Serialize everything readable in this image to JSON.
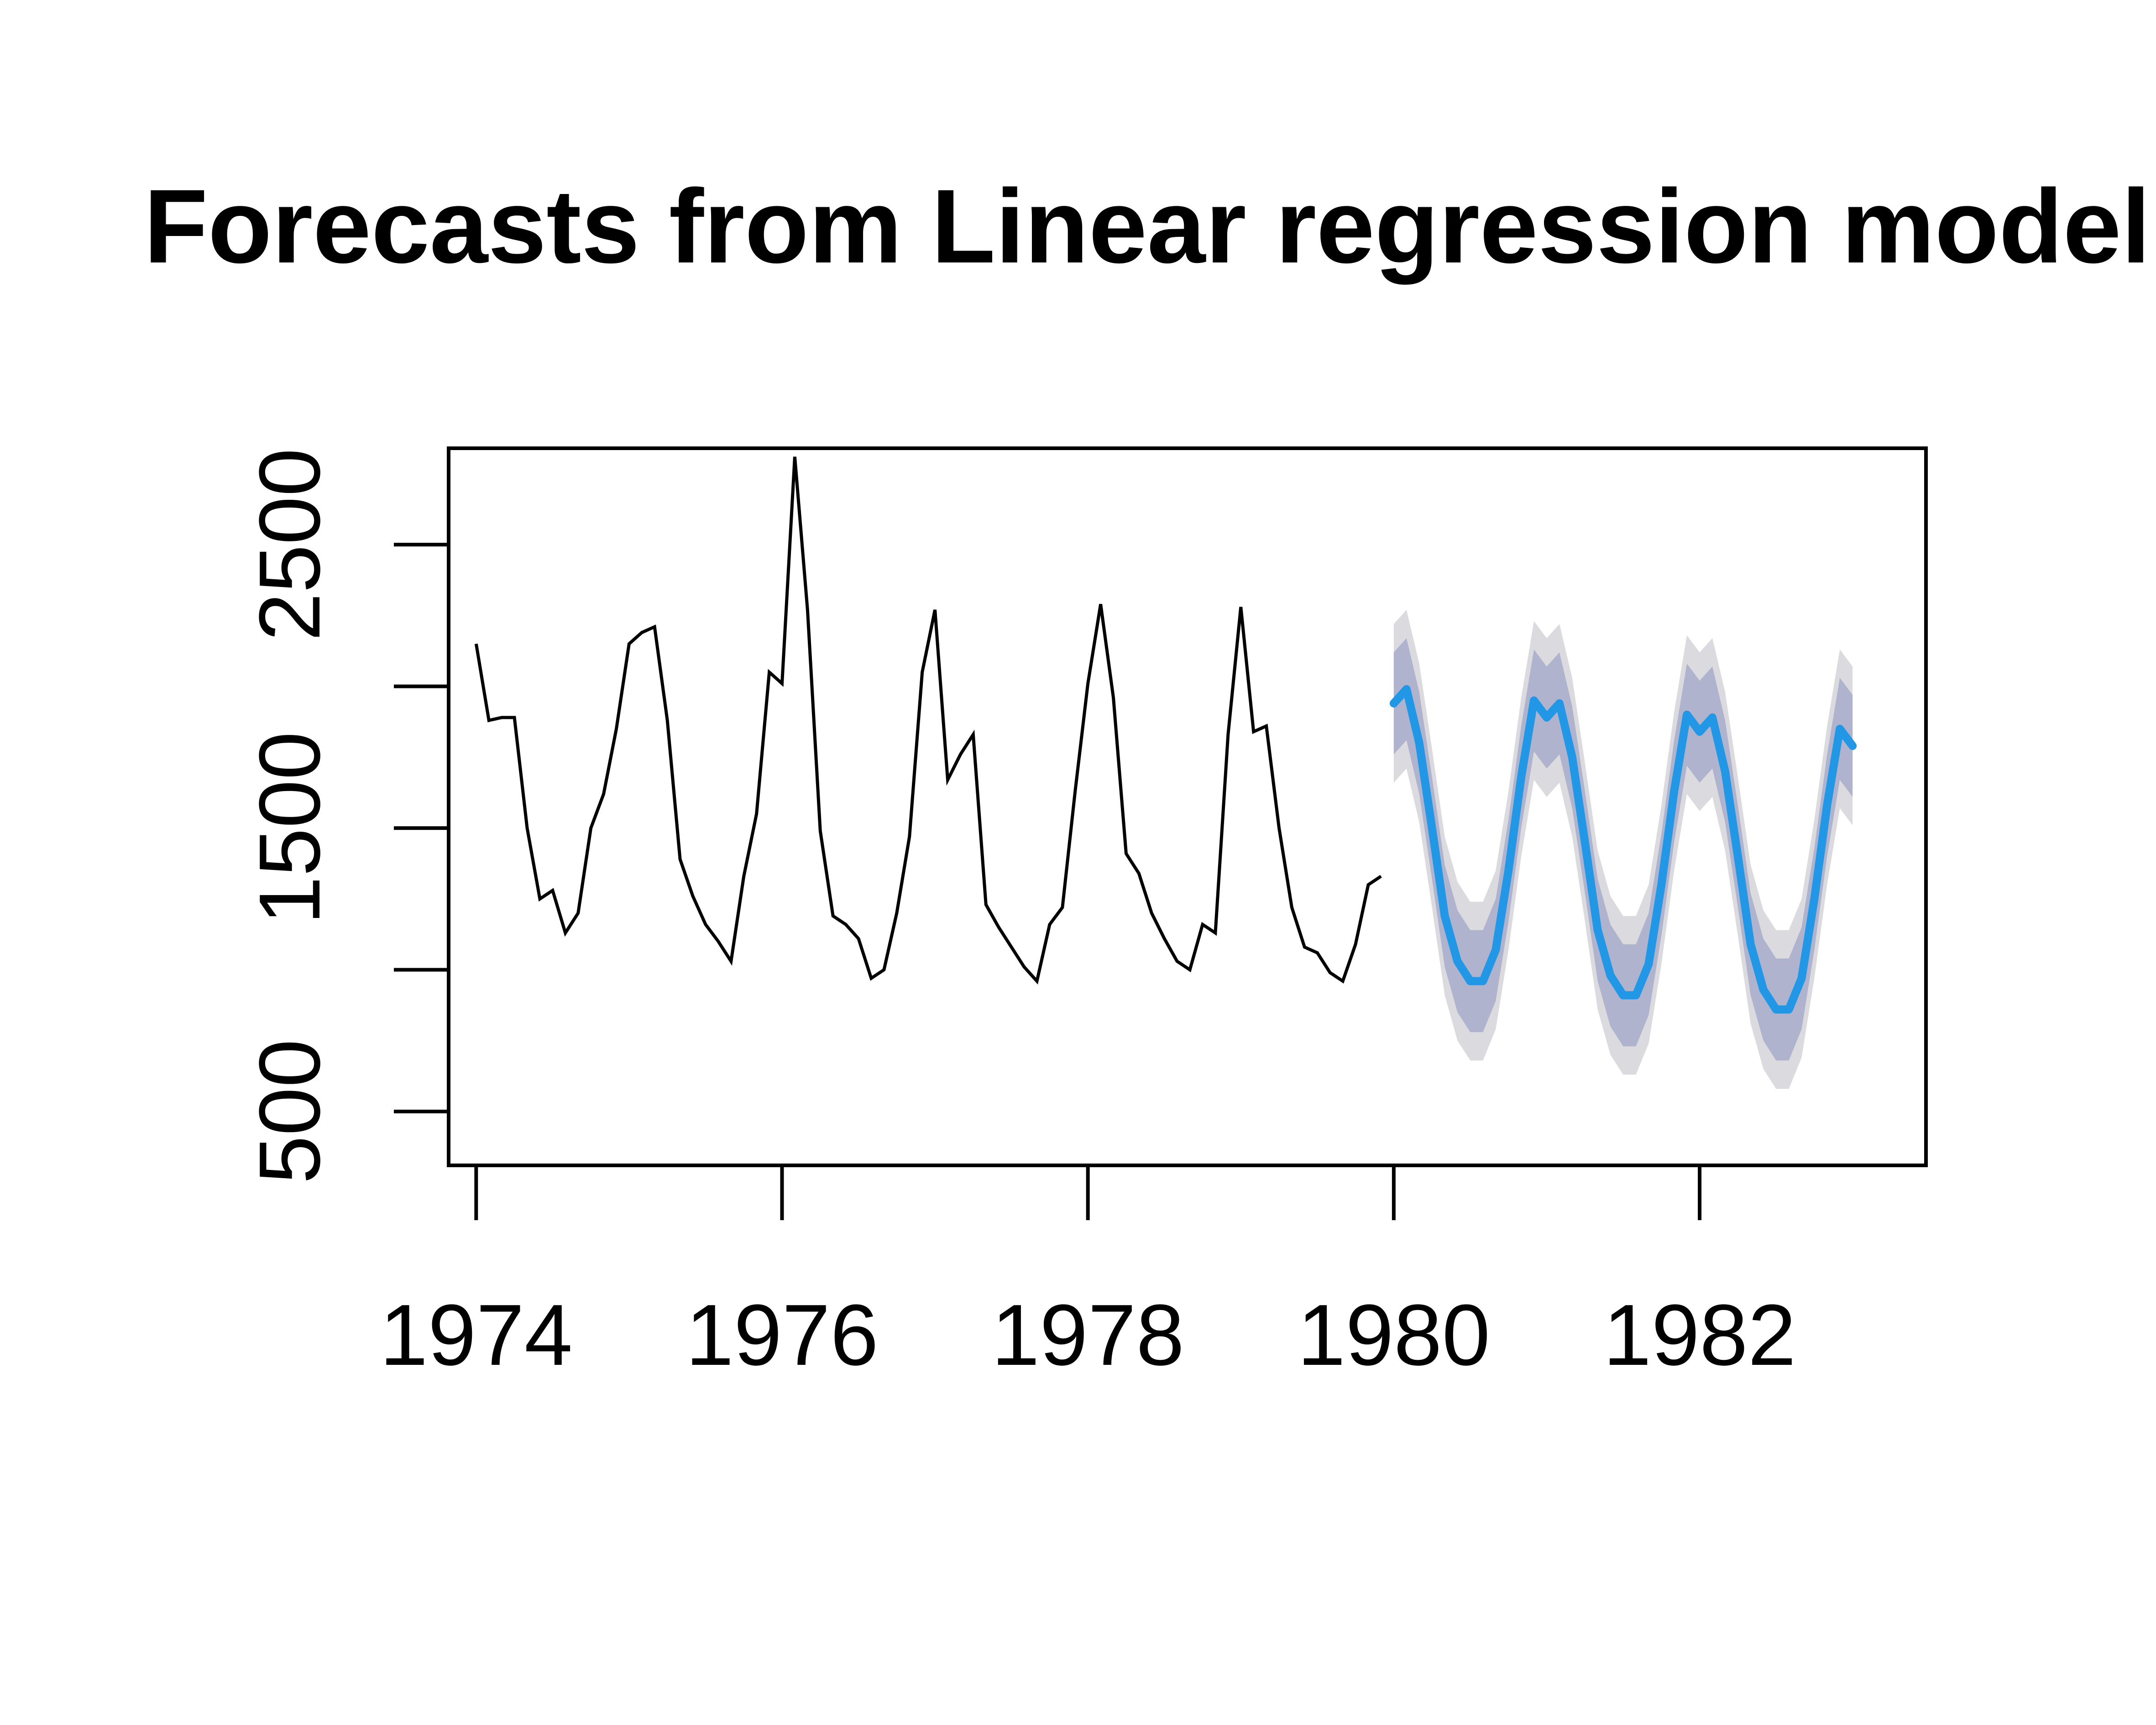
{
  "title": "Forecasts from Linear regression model",
  "chart_data": {
    "type": "line",
    "title": "Forecasts from Linear regression model",
    "xlabel": "",
    "ylabel": "",
    "xlim": [
      1973.82,
      1983.48
    ],
    "ylim": [
      310,
      2840
    ],
    "x_ticks": [
      1974,
      1976,
      1978,
      1980,
      1982
    ],
    "x_tick_labels": [
      "1974",
      "1976",
      "1978",
      "1980",
      "1982"
    ],
    "y_ticks": [
      500,
      1000,
      1500,
      2000,
      2500
    ],
    "y_tick_labels": [
      "500",
      "",
      "1500",
      "",
      "2500"
    ],
    "grid": false,
    "legend": "none",
    "colors": {
      "history": "#000000",
      "forecast": "#2297e6",
      "band80": "#b0b3ce",
      "band95": "#dbdbdf"
    },
    "start": 1974.0,
    "frequency": 12,
    "series": [
      {
        "values": [
          2150,
          1880,
          1890,
          1890,
          1500,
          1250,
          1280,
          1130,
          1200,
          1500,
          1620,
          1850,
          2150,
          2190,
          2210,
          1880,
          1390,
          1260,
          1160,
          1100,
          1030,
          1330,
          1550,
          2050,
          2010,
          2810,
          2270,
          1490,
          1190,
          1160,
          1110,
          970,
          1000,
          1200,
          1470,
          2050,
          2270,
          1670,
          1760,
          1830,
          1230,
          1150,
          1080,
          1010,
          960,
          1160,
          1220,
          1630,
          2010,
          2290,
          1960,
          1410,
          1340,
          1200,
          1110,
          1030,
          1000,
          1160,
          1130,
          1830,
          2280,
          1840,
          1860,
          1500,
          1220,
          1080,
          1060,
          990,
          960,
          1090,
          1300,
          1330
        ]
      },
      {
        "name": "forecast",
        "start": 1980.0,
        "values": [
          1940,
          1990,
          1800,
          1500,
          1190,
          1030,
          960,
          960,
          1070,
          1350,
          1680,
          1950
        ],
        "repeat_trend": -50,
        "periods": 37,
        "band80_half_width": 180,
        "band95_half_width": 280
      }
    ]
  }
}
